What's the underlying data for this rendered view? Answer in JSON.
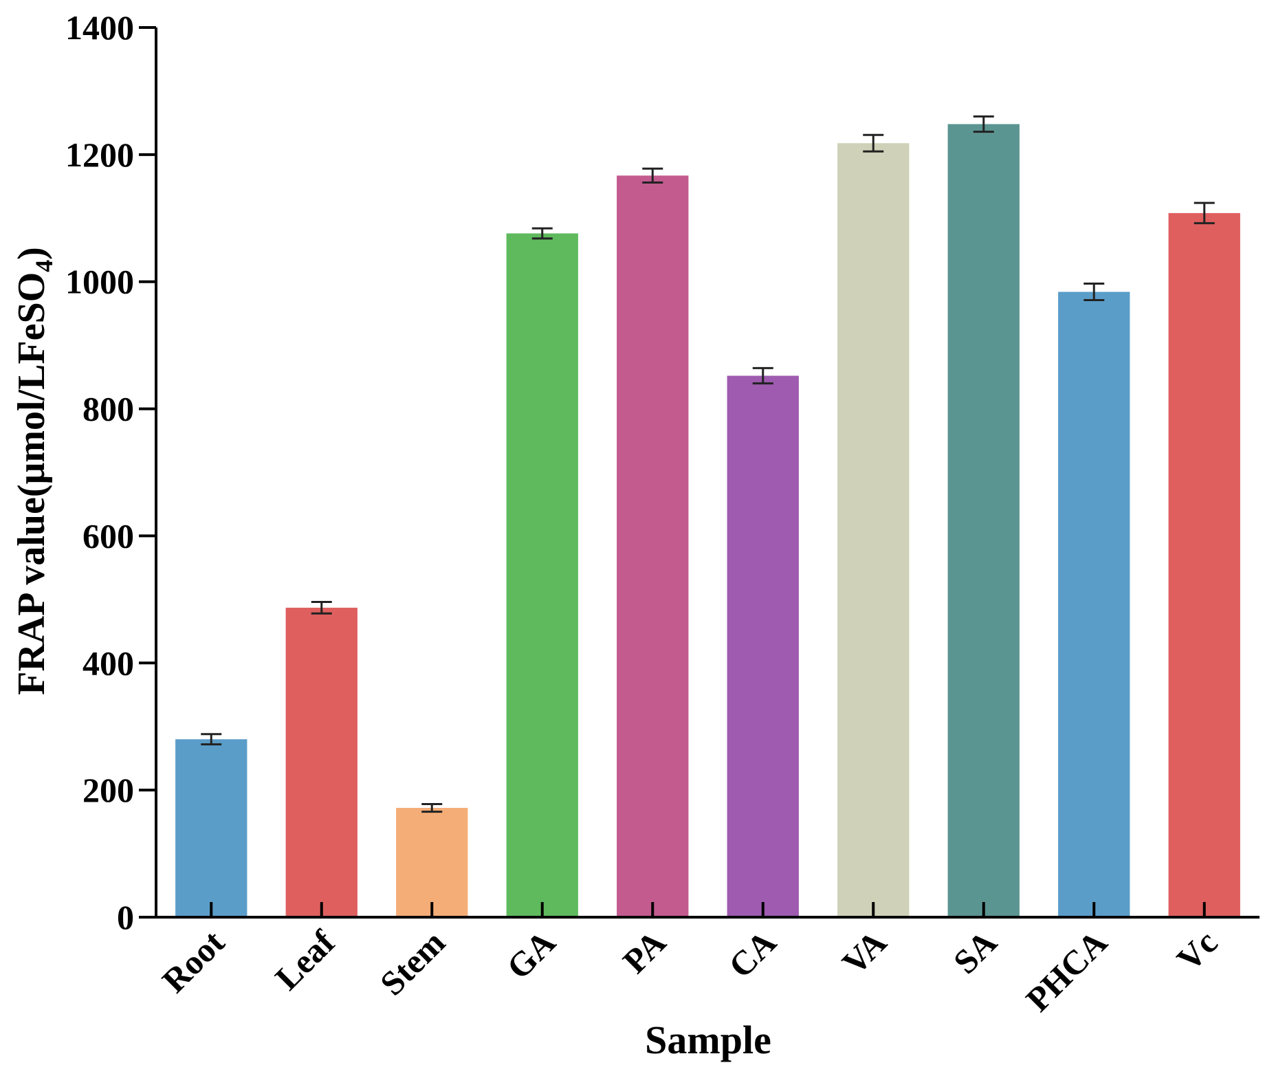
{
  "chart_data": {
    "type": "bar",
    "xlabel": "Sample",
    "ylabel": "FRAP value(μmol/LFeSO",
    "ylabel_subscript": "4",
    "ylabel_close": ")",
    "categories": [
      "Root",
      "Leaf",
      "Stem",
      "GA",
      "PA",
      "CA",
      "VA",
      "SA",
      "PHCA",
      "Vc"
    ],
    "values": [
      280,
      487,
      172,
      1076,
      1167,
      852,
      1218,
      1248,
      984,
      1108
    ],
    "errors": [
      8,
      9,
      6,
      8,
      11,
      12,
      13,
      12,
      13,
      16
    ],
    "colors": [
      "#5b9dc9",
      "#df5f5f",
      "#f5ad78",
      "#5fba5e",
      "#c35b8f",
      "#9e5bb0",
      "#cfd2b8",
      "#5b9592",
      "#5b9dc9",
      "#df5f5f"
    ],
    "ylim": [
      0,
      1400
    ],
    "yticks": [
      0,
      200,
      400,
      600,
      800,
      1000,
      1200,
      1400
    ],
    "grid": false,
    "legend": "none"
  }
}
